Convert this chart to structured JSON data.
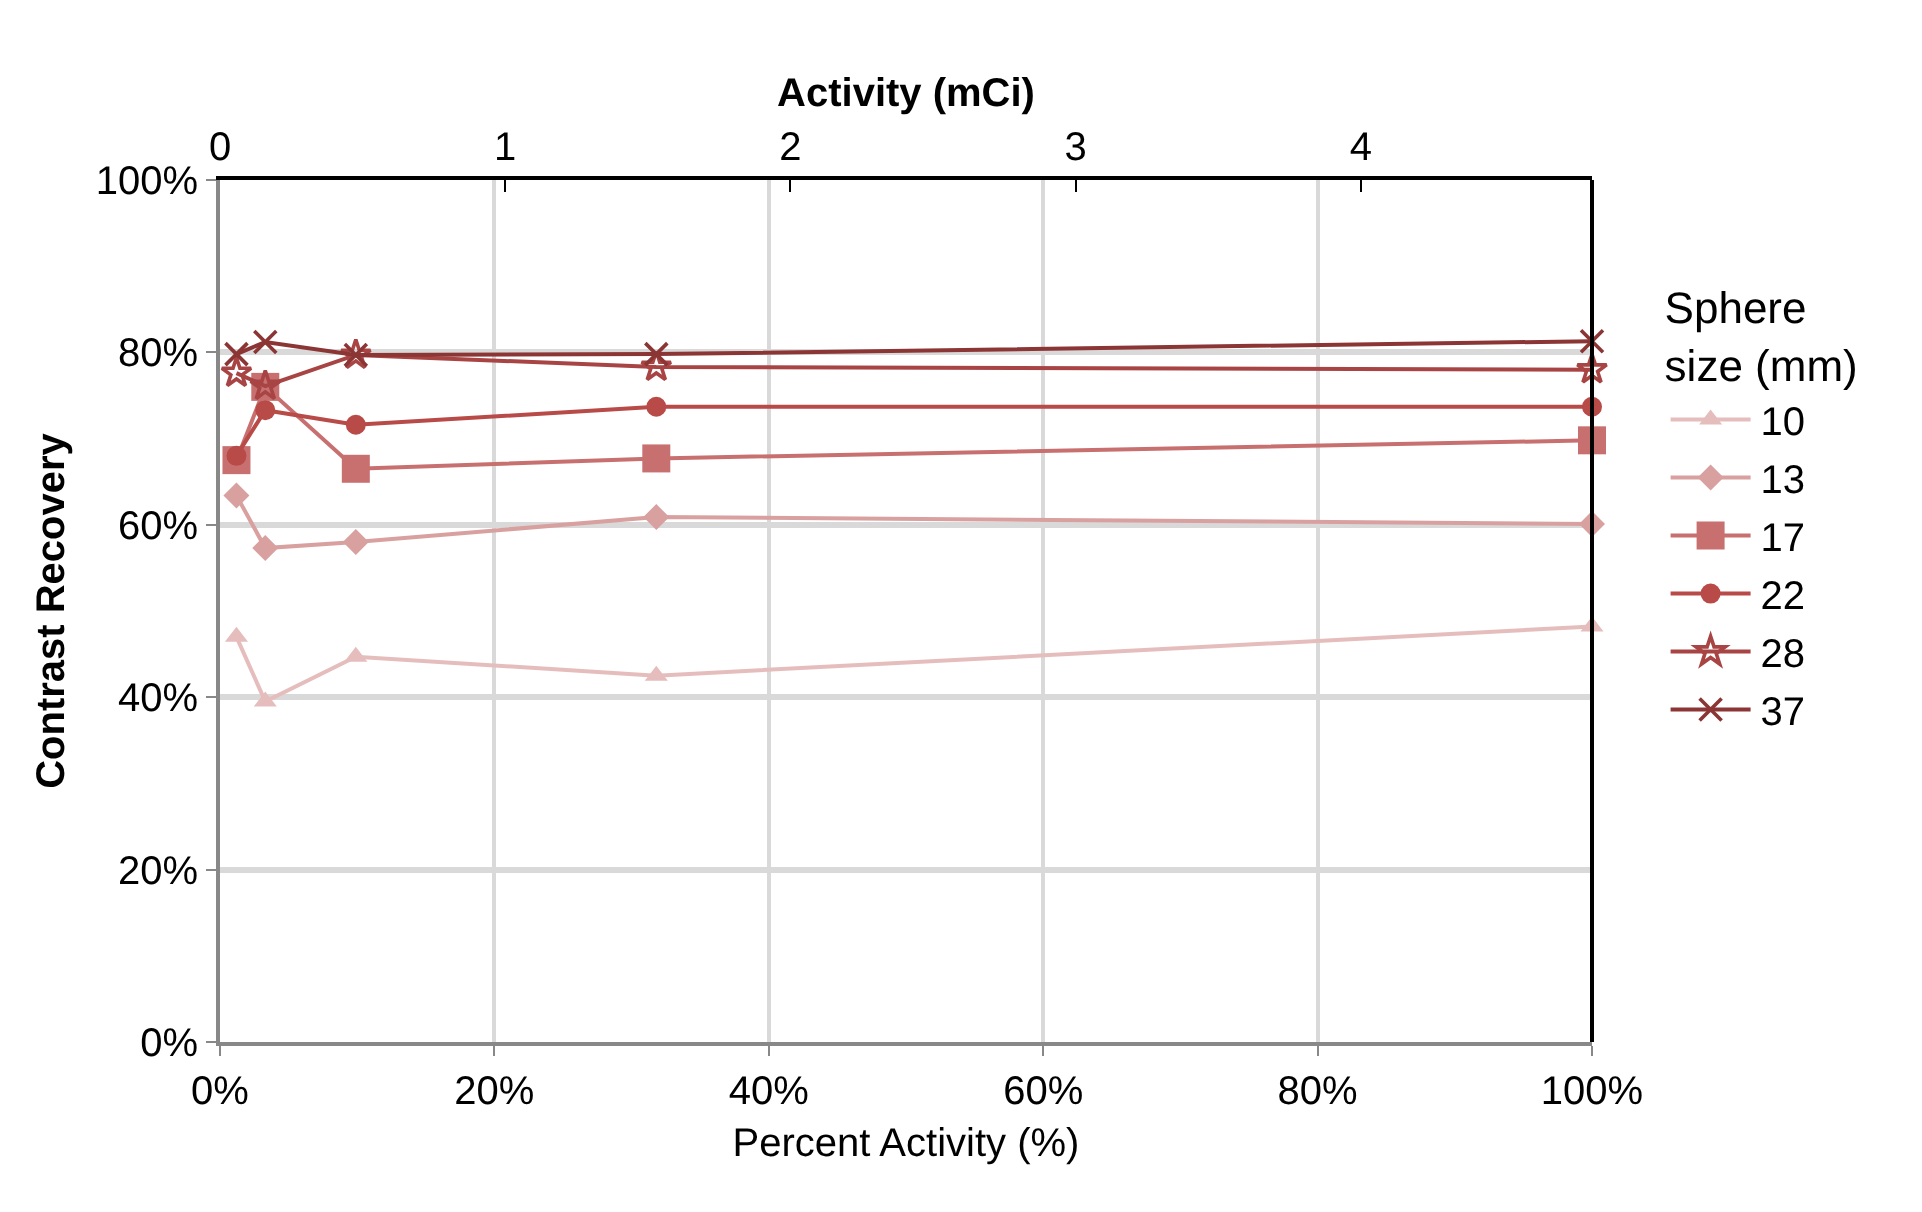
{
  "chart_data": {
    "type": "line",
    "xlabel": "Percent Activity (%)",
    "ylabel": "Contrast Recovery",
    "x2label": "Activity (mCi)",
    "legend_title": "Sphere size (mm)",
    "x": [
      1.2,
      3.3,
      9.9,
      31.8,
      100
    ],
    "series": [
      {
        "name": "10",
        "color": "#e6bdbd",
        "marker": "triangle",
        "values": [
          47.0,
          39.5,
          44.7,
          42.5,
          48.2
        ]
      },
      {
        "name": "13",
        "color": "#d9a0a0",
        "marker": "diamond",
        "values": [
          63.4,
          57.3,
          58.0,
          60.9,
          60.1
        ]
      },
      {
        "name": "17",
        "color": "#c87070",
        "marker": "square",
        "values": [
          67.5,
          76.0,
          66.5,
          67.7,
          69.8
        ]
      },
      {
        "name": "22",
        "color": "#b84a48",
        "marker": "circle",
        "values": [
          68.0,
          73.3,
          71.6,
          73.7,
          73.7
        ]
      },
      {
        "name": "28",
        "color": "#a84444",
        "marker": "star",
        "values": [
          77.6,
          76.1,
          79.7,
          78.3,
          78.0
        ]
      },
      {
        "name": "37",
        "color": "#8b3535",
        "marker": "cross",
        "values": [
          79.8,
          81.2,
          79.7,
          79.8,
          81.3
        ]
      }
    ],
    "xlim": [
      0,
      100
    ],
    "xticks": [
      {
        "value": 0,
        "label": "0%"
      },
      {
        "value": 20,
        "label": "20%"
      },
      {
        "value": 40,
        "label": "40%"
      },
      {
        "value": 60,
        "label": "60%"
      },
      {
        "value": 80,
        "label": "80%"
      },
      {
        "value": 100,
        "label": "100%"
      }
    ],
    "x2lim": [
      0,
      4.81
    ],
    "x2ticks": [
      0,
      1,
      2,
      3,
      4
    ],
    "ylim": [
      0,
      100
    ],
    "yticks": [
      {
        "value": 0,
        "label": "0%"
      },
      {
        "value": 20,
        "label": "20%"
      },
      {
        "value": 40,
        "label": "40%"
      },
      {
        "value": 60,
        "label": "60%"
      },
      {
        "value": 80,
        "label": "80%"
      },
      {
        "value": 100,
        "label": "100%"
      }
    ],
    "grid": true,
    "legend": "right",
    "line_style": "solid"
  }
}
